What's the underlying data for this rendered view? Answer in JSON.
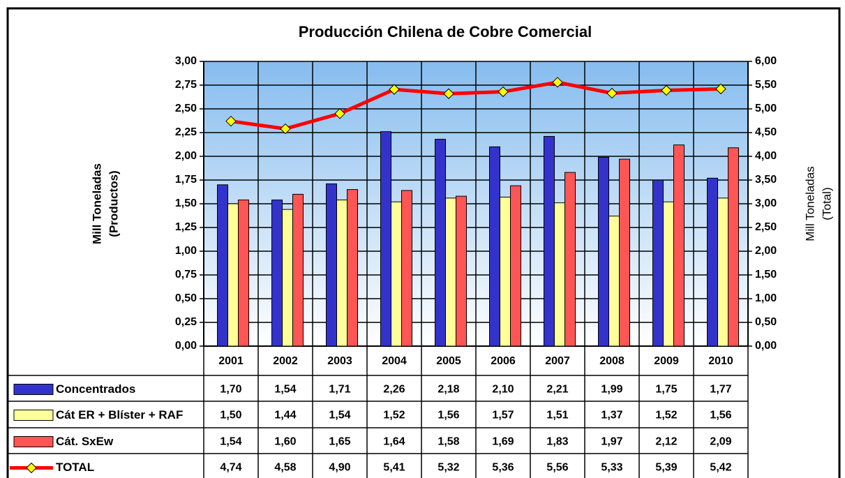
{
  "chart_data": {
    "type": "bar",
    "title": "Producción Chilena de Cobre Comercial",
    "ylabel": [
      "Mill Toneladas",
      "(Productos)"
    ],
    "y2label": [
      "Mill Toneladas",
      "(Total)"
    ],
    "categories": [
      "2001",
      "2002",
      "2003",
      "2004",
      "2005",
      "2006",
      "2007",
      "2008",
      "2009",
      "2010"
    ],
    "ylim": [
      0,
      3
    ],
    "yticks": [
      {
        "value": 0,
        "label": "0,00"
      },
      {
        "value": 0.25,
        "label": "0,25"
      },
      {
        "value": 0.5,
        "label": "0,50"
      },
      {
        "value": 0.75,
        "label": "0,75"
      },
      {
        "value": 1,
        "label": "1,00"
      },
      {
        "value": 1.25,
        "label": "1,25"
      },
      {
        "value": 1.5,
        "label": "1,50"
      },
      {
        "value": 1.75,
        "label": "1,75"
      },
      {
        "value": 2,
        "label": "2,00"
      },
      {
        "value": 2.25,
        "label": "2,25"
      },
      {
        "value": 2.5,
        "label": "2,50"
      },
      {
        "value": 2.75,
        "label": "2,75"
      },
      {
        "value": 3,
        "label": "3,00"
      }
    ],
    "y2lim": [
      0,
      6
    ],
    "y2ticks": [
      {
        "value": 0,
        "label": "0,00"
      },
      {
        "value": 0.5,
        "label": "0,50"
      },
      {
        "value": 1,
        "label": "1,00"
      },
      {
        "value": 1.5,
        "label": "1,50"
      },
      {
        "value": 2,
        "label": "2,00"
      },
      {
        "value": 2.5,
        "label": "2,50"
      },
      {
        "value": 3,
        "label": "3,00"
      },
      {
        "value": 3.5,
        "label": "3,50"
      },
      {
        "value": 4,
        "label": "4,00"
      },
      {
        "value": 4.5,
        "label": "4,50"
      },
      {
        "value": 5,
        "label": "5,00"
      },
      {
        "value": 5.5,
        "label": "5,50"
      },
      {
        "value": 6,
        "label": "6,00"
      }
    ],
    "grid": true,
    "series": [
      {
        "name": "Concentrados",
        "type": "bar",
        "color": "#3333cc",
        "values": [
          1.7,
          1.54,
          1.71,
          2.26,
          2.18,
          2.1,
          2.21,
          1.99,
          1.75,
          1.77
        ],
        "value_labels": [
          "1,70",
          "1,54",
          "1,71",
          "2,26",
          "2,18",
          "2,10",
          "2,21",
          "1,99",
          "1,75",
          "1,77"
        ]
      },
      {
        "name": "Cát ER + Blíster + RAF",
        "type": "bar",
        "color": "#ffff99",
        "values": [
          1.5,
          1.44,
          1.54,
          1.52,
          1.56,
          1.57,
          1.51,
          1.37,
          1.52,
          1.56
        ],
        "value_labels": [
          "1,50",
          "1,44",
          "1,54",
          "1,52",
          "1,56",
          "1,57",
          "1,51",
          "1,37",
          "1,52",
          "1,56"
        ]
      },
      {
        "name": "Cát. SxEw",
        "type": "bar",
        "color": "#ff5555",
        "values": [
          1.54,
          1.6,
          1.65,
          1.64,
          1.58,
          1.69,
          1.83,
          1.97,
          2.12,
          2.09
        ],
        "value_labels": [
          "1,54",
          "1,60",
          "1,65",
          "1,64",
          "1,58",
          "1,69",
          "1,83",
          "1,97",
          "2,12",
          "2,09"
        ]
      },
      {
        "name": "TOTAL",
        "type": "line",
        "axis": "y2",
        "color": "#ff0000",
        "marker_color": "#ffff00",
        "values": [
          4.74,
          4.58,
          4.9,
          5.41,
          5.32,
          5.36,
          5.56,
          5.33,
          5.39,
          5.42
        ],
        "value_labels": [
          "4,74",
          "4,58",
          "4,90",
          "5,41",
          "5,32",
          "5,36",
          "5,56",
          "5,33",
          "5,39",
          "5,42"
        ]
      }
    ]
  }
}
